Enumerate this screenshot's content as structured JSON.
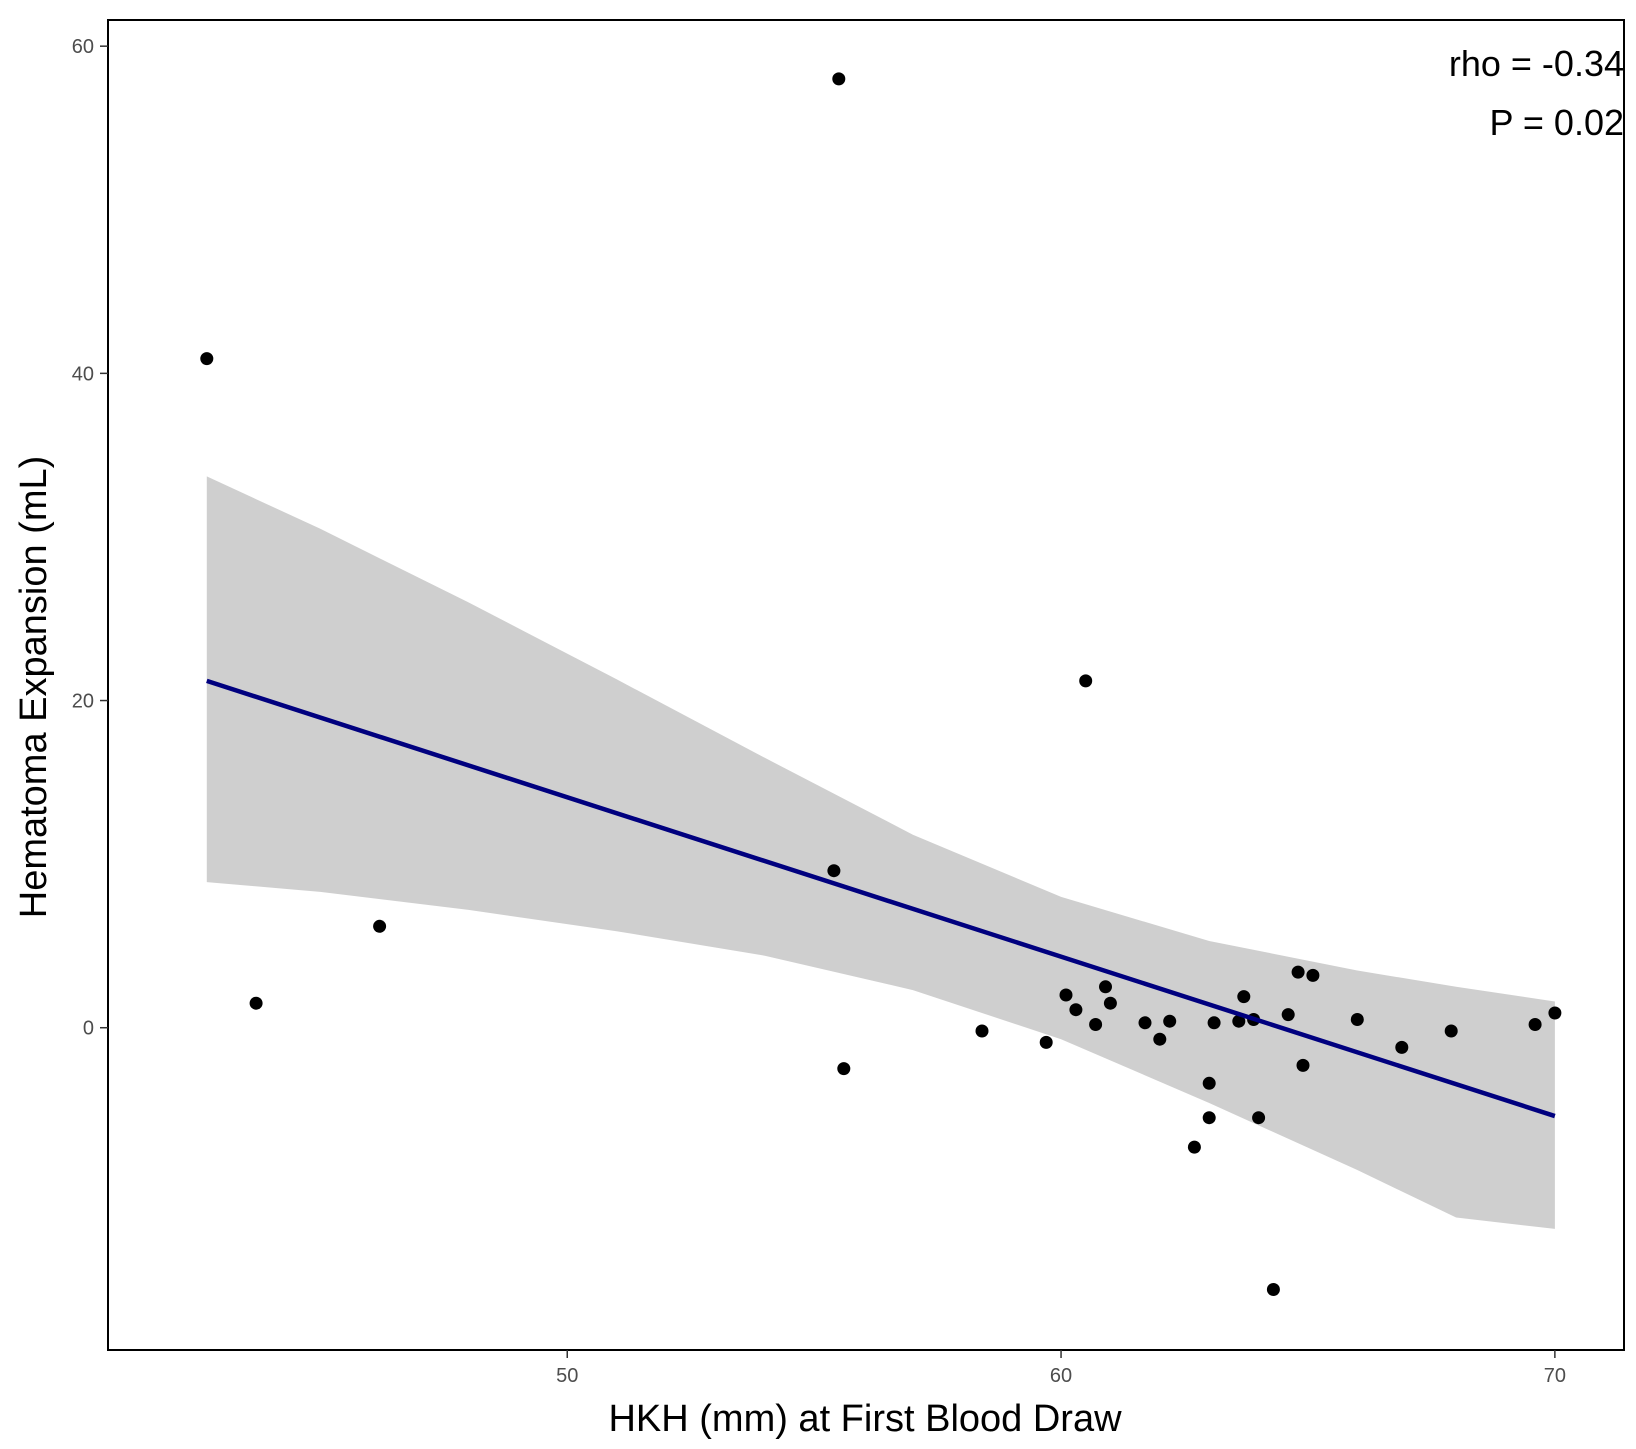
{
  "chart_data": {
    "type": "scatter",
    "title": "",
    "xlabel": "HKH (mm) at First Blood Draw",
    "ylabel": "Hematoma Expansion (mL)",
    "xlim": [
      40.7,
      71.4
    ],
    "ylim": [
      -19.7,
      61.6
    ],
    "x_ticks": [
      50,
      60,
      70
    ],
    "y_ticks": [
      0,
      20,
      40,
      60
    ],
    "grid": false,
    "annotations": [
      "rho = -0.34",
      "P = 0.02"
    ],
    "points": [
      {
        "x": 42.7,
        "y": 40.9
      },
      {
        "x": 43.7,
        "y": 1.5
      },
      {
        "x": 46.2,
        "y": 6.2
      },
      {
        "x": 55.4,
        "y": 9.6
      },
      {
        "x": 55.5,
        "y": 58.0
      },
      {
        "x": 55.6,
        "y": -2.5
      },
      {
        "x": 58.4,
        "y": -0.2
      },
      {
        "x": 59.7,
        "y": -0.9
      },
      {
        "x": 60.1,
        "y": 2.0
      },
      {
        "x": 60.3,
        "y": 1.1
      },
      {
        "x": 60.5,
        "y": 21.2
      },
      {
        "x": 60.7,
        "y": 0.2
      },
      {
        "x": 60.9,
        "y": 2.5
      },
      {
        "x": 61.0,
        "y": 1.5
      },
      {
        "x": 61.7,
        "y": 0.3
      },
      {
        "x": 62.0,
        "y": -0.7
      },
      {
        "x": 62.2,
        "y": 0.4
      },
      {
        "x": 62.7,
        "y": -7.3
      },
      {
        "x": 63.0,
        "y": -3.4
      },
      {
        "x": 63.0,
        "y": -5.5
      },
      {
        "x": 63.1,
        "y": 0.3
      },
      {
        "x": 63.6,
        "y": 0.4
      },
      {
        "x": 63.7,
        "y": 1.9
      },
      {
        "x": 63.9,
        "y": 0.5
      },
      {
        "x": 64.0,
        "y": -5.5
      },
      {
        "x": 64.3,
        "y": -16.0
      },
      {
        "x": 64.6,
        "y": 0.8
      },
      {
        "x": 64.8,
        "y": 3.4
      },
      {
        "x": 64.9,
        "y": -2.3
      },
      {
        "x": 65.1,
        "y": 3.2
      },
      {
        "x": 66.0,
        "y": 0.5
      },
      {
        "x": 66.9,
        "y": -1.2
      },
      {
        "x": 67.9,
        "y": -0.2
      },
      {
        "x": 69.6,
        "y": 0.2
      },
      {
        "x": 70.0,
        "y": 0.9
      }
    ],
    "fit": {
      "type": "linear",
      "color": "#00007f",
      "x": [
        42.7,
        70.0
      ],
      "y": [
        21.2,
        -5.4
      ]
    },
    "confidence_band": {
      "color": "#cccccc",
      "x": [
        42.7,
        45.0,
        48.0,
        51.0,
        54.0,
        57.0,
        60.0,
        63.0,
        66.0,
        68.0,
        70.0
      ],
      "upper": [
        33.7,
        30.5,
        26.0,
        21.3,
        16.5,
        11.8,
        8.0,
        5.3,
        3.5,
        2.5,
        1.6
      ],
      "lower": [
        8.9,
        8.3,
        7.2,
        5.9,
        4.4,
        2.3,
        -0.7,
        -4.6,
        -8.7,
        -11.6,
        -12.3
      ]
    },
    "point_color": "#000000"
  }
}
